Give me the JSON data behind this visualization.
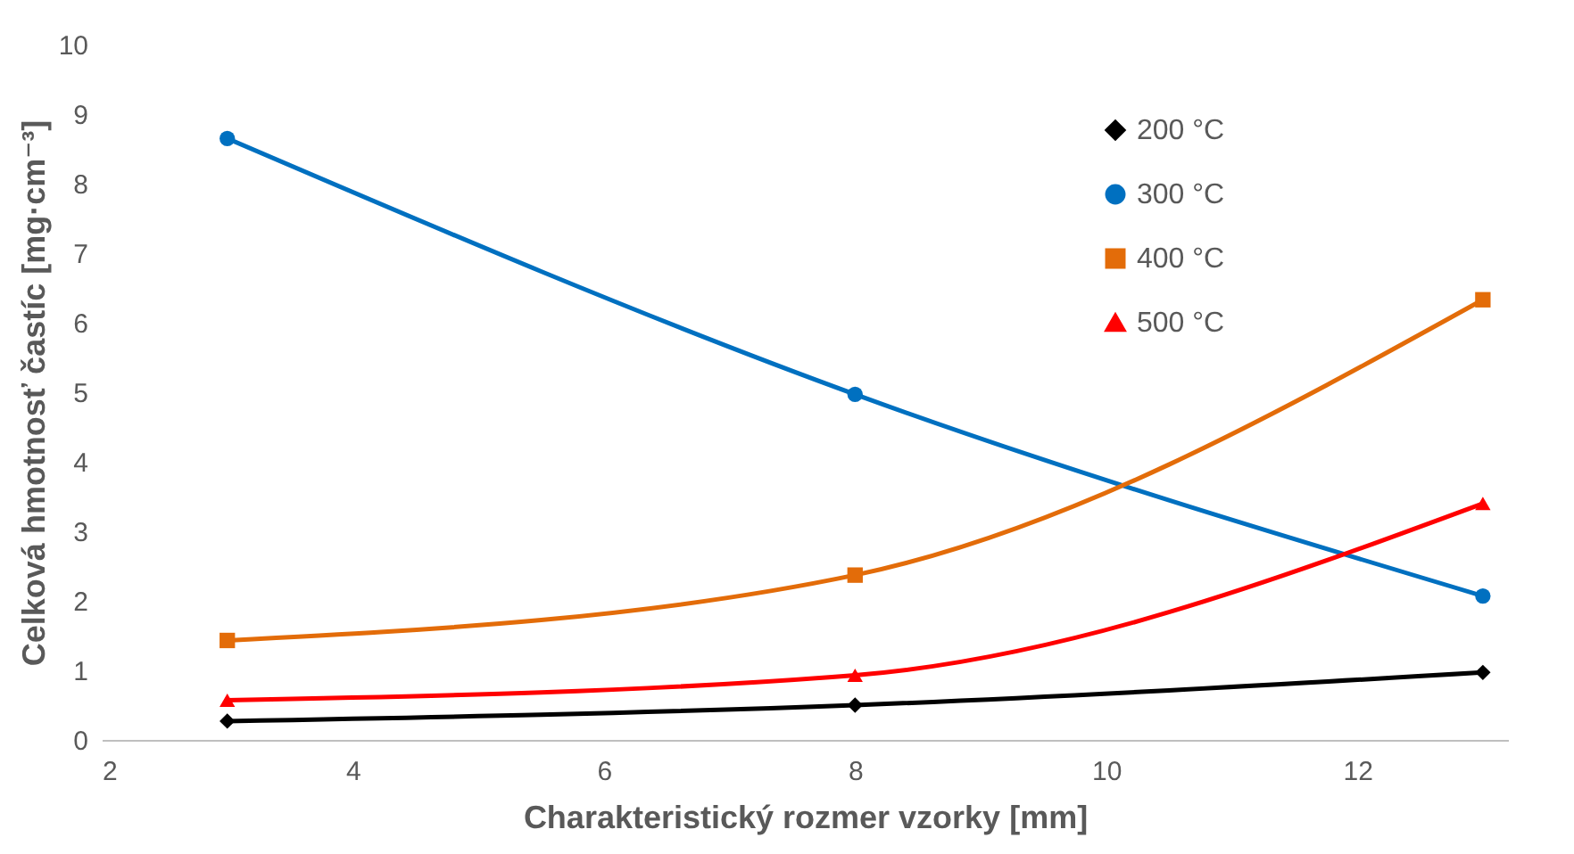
{
  "chart_data": {
    "type": "line",
    "xlabel": "Charakteristický rozmer vzorky [mm]",
    "ylabel": "Celková hmotnosť častíc [mg·cm⁻³]",
    "x": [
      3,
      8,
      13
    ],
    "series": [
      {
        "name": "200 °C",
        "color": "#000000",
        "marker": "diamond",
        "values": [
          0.27,
          0.5,
          0.97
        ]
      },
      {
        "name": "300 °C",
        "color": "#0070c0",
        "marker": "circle",
        "values": [
          8.65,
          4.97,
          2.07
        ]
      },
      {
        "name": "400 °C",
        "color": "#e36c09",
        "marker": "square",
        "values": [
          1.43,
          2.37,
          6.33
        ]
      },
      {
        "name": "500 °C",
        "color": "#ff0000",
        "marker": "triangle",
        "values": [
          0.57,
          0.93,
          3.4
        ]
      }
    ],
    "xlim": [
      2,
      13.2
    ],
    "xticks": [
      2,
      4,
      6,
      8,
      10,
      12
    ],
    "ylim": [
      0,
      10
    ],
    "yticks": [
      0,
      1,
      2,
      3,
      4,
      5,
      6,
      7,
      8,
      9,
      10
    ],
    "grid": false,
    "legend": "top right"
  }
}
